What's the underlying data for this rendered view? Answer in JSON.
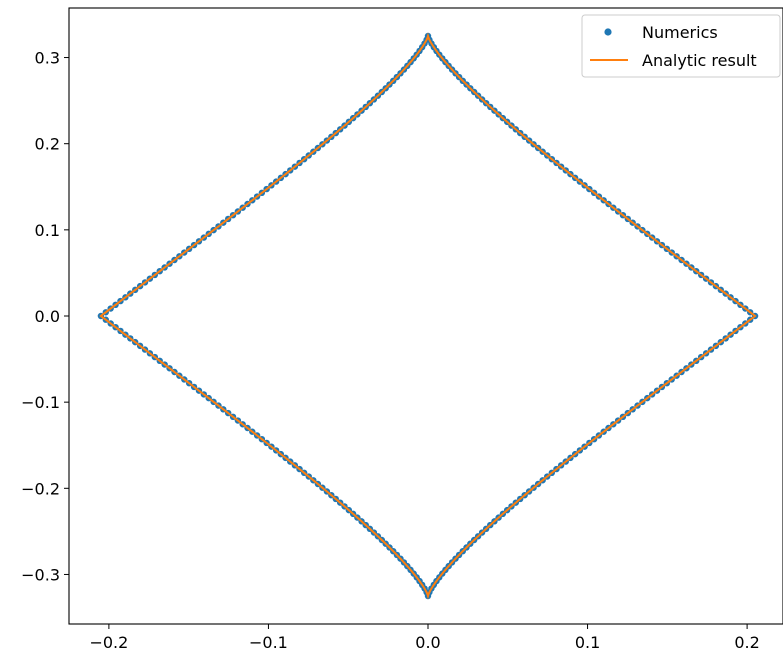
{
  "chart_data": {
    "type": "scatter",
    "title": "",
    "xlabel": "",
    "ylabel": "",
    "xlim": [
      -0.225,
      0.2225
    ],
    "ylim": [
      -0.3575,
      0.3575
    ],
    "x_ticks": [
      -0.2,
      -0.1,
      0.0,
      0.1,
      0.2
    ],
    "x_tick_labels": [
      "−0.2",
      "−0.1",
      "0.0",
      "0.1",
      "0.2"
    ],
    "y_ticks": [
      -0.3,
      -0.2,
      -0.1,
      0.0,
      0.1,
      0.2,
      0.3
    ],
    "y_tick_labels": [
      "−0.3",
      "−0.2",
      "−0.1",
      "0.0",
      "0.1",
      "0.2",
      "0.3"
    ],
    "grid": false,
    "legend_placement": "top-right",
    "curve": {
      "shape": "closed symmetric lens",
      "x_extent": 0.205,
      "y_extent": 0.325,
      "key_points": [
        {
          "x": 0.205,
          "y": 0.0
        },
        {
          "x": 0.17,
          "y": 0.1
        },
        {
          "x": 0.1,
          "y": 0.2
        },
        {
          "x": 0.05,
          "y": 0.265
        },
        {
          "x": 0.0,
          "y": 0.325
        },
        {
          "x": -0.05,
          "y": 0.265
        },
        {
          "x": -0.1,
          "y": 0.2
        },
        {
          "x": -0.17,
          "y": 0.1
        },
        {
          "x": -0.205,
          "y": 0.0
        },
        {
          "x": -0.17,
          "y": -0.1
        },
        {
          "x": -0.1,
          "y": -0.2
        },
        {
          "x": -0.05,
          "y": -0.265
        },
        {
          "x": 0.0,
          "y": -0.325
        },
        {
          "x": 0.05,
          "y": -0.265
        },
        {
          "x": 0.1,
          "y": -0.2
        },
        {
          "x": 0.17,
          "y": -0.1
        }
      ]
    },
    "series": [
      {
        "name": "Numerics",
        "style": "points",
        "color": "#1f77b4",
        "num_points": 300
      },
      {
        "name": "Analytic result",
        "style": "line",
        "color": "#ff7f0e"
      }
    ]
  }
}
